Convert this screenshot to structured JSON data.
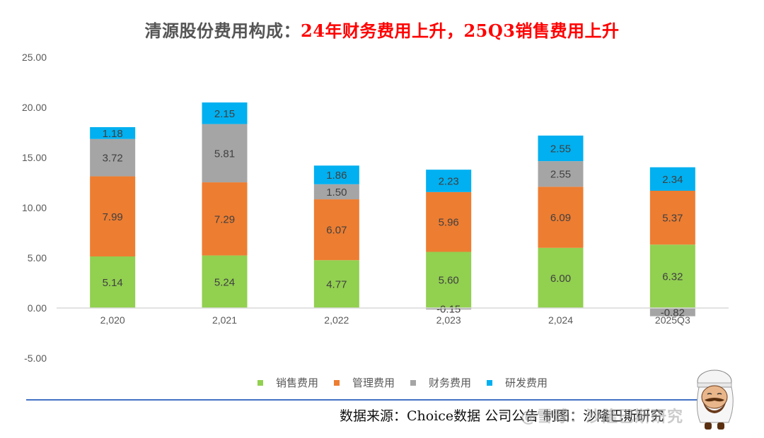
{
  "title": {
    "prefix": "清源股份费用构成：",
    "highlight": "24年财务费用上升，25Q3销售费用上升"
  },
  "colors": {
    "销售费用": "#92d050",
    "管理费用": "#ed7d31",
    "财务费用": "#a5a5a5",
    "研发费用": "#00b0f0",
    "title_prefix": "#555555",
    "title_highlight": "#ff0000",
    "footer_line": "#4472c4"
  },
  "chart_data": {
    "type": "bar",
    "stacked": true,
    "title": "清源股份费用构成：24年财务费用上升，25Q3销售费用上升",
    "xlabel": "",
    "ylabel": "",
    "categories": [
      "2,020",
      "2,021",
      "2,022",
      "2,023",
      "2,024",
      "2025Q3"
    ],
    "ylim": [
      -5,
      25
    ],
    "yticks": [
      "25.00",
      "20.00",
      "15.00",
      "10.00",
      "5.00",
      "0.00",
      "-5.00"
    ],
    "ytick_values": [
      25,
      20,
      15,
      10,
      5,
      0,
      -5
    ],
    "grid": false,
    "legend_position": "bottom",
    "series": [
      {
        "name": "销售费用",
        "values": [
          5.14,
          5.24,
          4.77,
          5.6,
          6.0,
          6.32
        ]
      },
      {
        "name": "管理费用",
        "values": [
          7.99,
          7.29,
          6.07,
          5.96,
          6.09,
          5.37
        ]
      },
      {
        "name": "财务费用",
        "values": [
          3.72,
          5.81,
          1.5,
          -0.15,
          2.55,
          -0.82
        ]
      },
      {
        "name": "研发费用",
        "values": [
          1.18,
          2.15,
          1.86,
          2.23,
          2.55,
          2.34
        ]
      }
    ]
  },
  "legend": [
    {
      "label": "销售费用"
    },
    {
      "label": "管理费用"
    },
    {
      "label": "财务费用"
    },
    {
      "label": "研发费用"
    }
  ],
  "footer": {
    "source": "数据来源：Choice数据  公司公告  制图：沙隆巴斯研究",
    "watermark": "@雪球：沙隆巴斯研究"
  }
}
